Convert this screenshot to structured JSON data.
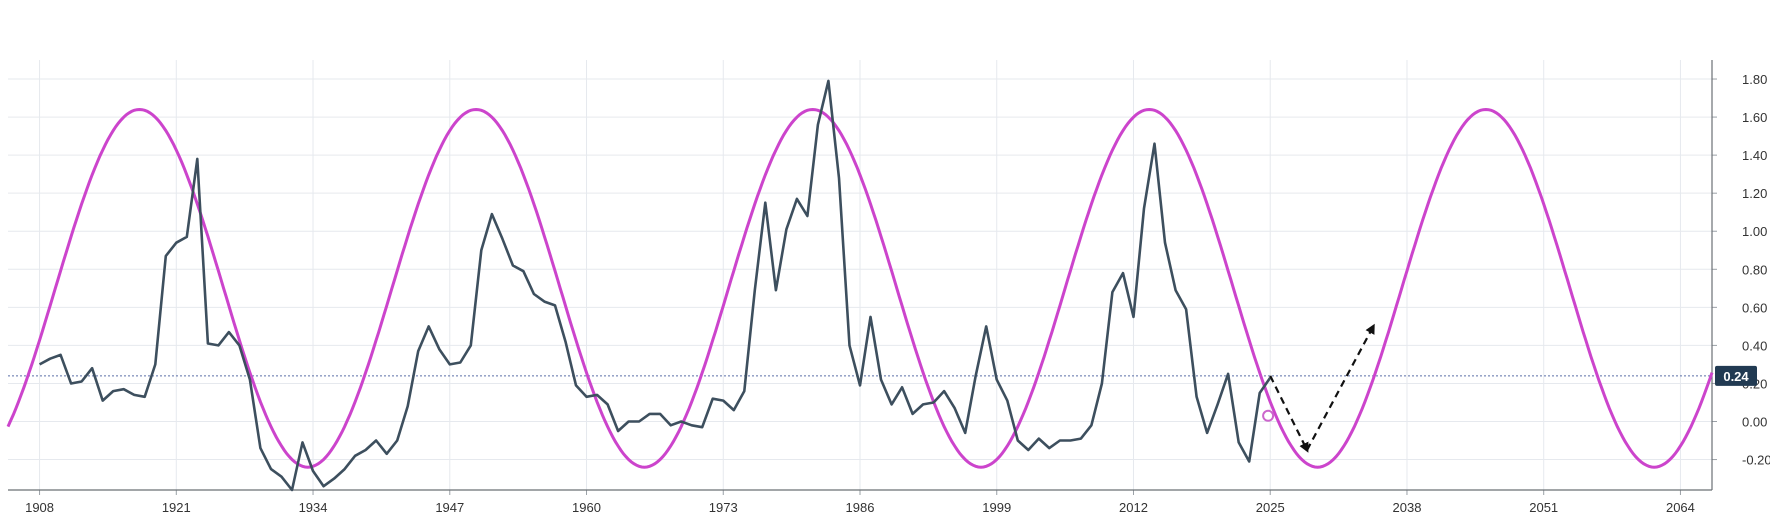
{
  "chart_data": {
    "type": "line",
    "title": "",
    "xlabel": "",
    "ylabel": "",
    "x_ticks": [
      1908,
      1921,
      1934,
      1947,
      1960,
      1973,
      1986,
      1999,
      2012,
      2025,
      2038,
      2051,
      2064
    ],
    "y_ticks": [
      "1.80",
      "1.60",
      "1.40",
      "1.20",
      "1.00",
      "0.80",
      "0.60",
      "0.40",
      "0.20",
      "0.00",
      "-0.20"
    ],
    "xlim": [
      1905,
      2067
    ],
    "ylim": [
      -0.36,
      1.9
    ],
    "grid": true,
    "current_value_label": "0.24",
    "current_value": 0.24,
    "series": [
      {
        "type": "line",
        "color": "#3d4f5e",
        "points": [
          [
            1908,
            0.3
          ],
          [
            1909,
            0.33
          ],
          [
            1910,
            0.35
          ],
          [
            1911,
            0.2
          ],
          [
            1912,
            0.21
          ],
          [
            1913,
            0.28
          ],
          [
            1914,
            0.11
          ],
          [
            1915,
            0.16
          ],
          [
            1916,
            0.17
          ],
          [
            1917,
            0.14
          ],
          [
            1918,
            0.13
          ],
          [
            1919,
            0.3
          ],
          [
            1920,
            0.87
          ],
          [
            1921,
            0.94
          ],
          [
            1922,
            0.97
          ],
          [
            1923,
            1.38
          ],
          [
            1924,
            0.41
          ],
          [
            1925,
            0.4
          ],
          [
            1926,
            0.47
          ],
          [
            1927,
            0.4
          ],
          [
            1928,
            0.22
          ],
          [
            1929,
            -0.14
          ],
          [
            1930,
            -0.25
          ],
          [
            1931,
            -0.29
          ],
          [
            1932,
            -0.36
          ],
          [
            1933,
            -0.11
          ],
          [
            1934,
            -0.26
          ],
          [
            1935,
            -0.34
          ],
          [
            1936,
            -0.3
          ],
          [
            1937,
            -0.25
          ],
          [
            1938,
            -0.18
          ],
          [
            1939,
            -0.15
          ],
          [
            1940,
            -0.1
          ],
          [
            1941,
            -0.17
          ],
          [
            1942,
            -0.1
          ],
          [
            1943,
            0.08
          ],
          [
            1944,
            0.37
          ],
          [
            1945,
            0.5
          ],
          [
            1946,
            0.38
          ],
          [
            1947,
            0.3
          ],
          [
            1948,
            0.31
          ],
          [
            1949,
            0.4
          ],
          [
            1950,
            0.9
          ],
          [
            1951,
            1.09
          ],
          [
            1952,
            0.96
          ],
          [
            1953,
            0.82
          ],
          [
            1954,
            0.79
          ],
          [
            1955,
            0.67
          ],
          [
            1956,
            0.63
          ],
          [
            1957,
            0.61
          ],
          [
            1958,
            0.42
          ],
          [
            1959,
            0.19
          ],
          [
            1960,
            0.13
          ],
          [
            1961,
            0.14
          ],
          [
            1962,
            0.09
          ],
          [
            1963,
            -0.05
          ],
          [
            1964,
            0.0
          ],
          [
            1965,
            0.0
          ],
          [
            1966,
            0.04
          ],
          [
            1967,
            0.04
          ],
          [
            1968,
            -0.02
          ],
          [
            1969,
            0.0
          ],
          [
            1970,
            -0.02
          ],
          [
            1971,
            -0.03
          ],
          [
            1972,
            0.12
          ],
          [
            1973,
            0.11
          ],
          [
            1974,
            0.06
          ],
          [
            1975,
            0.16
          ],
          [
            1976,
            0.69
          ],
          [
            1977,
            1.15
          ],
          [
            1978,
            0.69
          ],
          [
            1979,
            1.01
          ],
          [
            1980,
            1.17
          ],
          [
            1981,
            1.08
          ],
          [
            1982,
            1.56
          ],
          [
            1983,
            1.79
          ],
          [
            1984,
            1.28
          ],
          [
            1985,
            0.4
          ],
          [
            1986,
            0.19
          ],
          [
            1987,
            0.55
          ],
          [
            1988,
            0.22
          ],
          [
            1989,
            0.09
          ],
          [
            1990,
            0.18
          ],
          [
            1991,
            0.04
          ],
          [
            1992,
            0.09
          ],
          [
            1993,
            0.1
          ],
          [
            1994,
            0.16
          ],
          [
            1995,
            0.07
          ],
          [
            1996,
            -0.06
          ],
          [
            1997,
            0.24
          ],
          [
            1998,
            0.5
          ],
          [
            1999,
            0.22
          ],
          [
            2000,
            0.11
          ],
          [
            2001,
            -0.1
          ],
          [
            2002,
            -0.15
          ],
          [
            2003,
            -0.09
          ],
          [
            2004,
            -0.14
          ],
          [
            2005,
            -0.1
          ],
          [
            2006,
            -0.1
          ],
          [
            2007,
            -0.09
          ],
          [
            2008,
            -0.02
          ],
          [
            2009,
            0.2
          ],
          [
            2010,
            0.68
          ],
          [
            2011,
            0.78
          ],
          [
            2012,
            0.55
          ],
          [
            2013,
            1.12
          ],
          [
            2014,
            1.46
          ],
          [
            2015,
            0.94
          ],
          [
            2016,
            0.69
          ],
          [
            2017,
            0.59
          ],
          [
            2018,
            0.13
          ],
          [
            2019,
            -0.06
          ],
          [
            2020,
            0.09
          ],
          [
            2021,
            0.25
          ],
          [
            2022,
            -0.11
          ],
          [
            2023,
            -0.21
          ],
          [
            2024,
            0.15
          ],
          [
            2025,
            0.23
          ]
        ]
      },
      {
        "type": "sine",
        "color": "#cc44cc",
        "center": 0.7,
        "amplitude": 0.94,
        "period_years": 32,
        "first_peak_x": 1917.5,
        "x_start": 1905,
        "x_end": 2067
      }
    ],
    "marker": {
      "x": 2024.8,
      "y": 0.03,
      "color": "#cc66cc"
    },
    "projection_arrows": [
      {
        "from": [
          2025,
          0.24
        ],
        "to": [
          2028.5,
          -0.15
        ]
      },
      {
        "from": [
          2028.5,
          -0.15
        ],
        "to": [
          2034.8,
          0.5
        ]
      }
    ]
  }
}
